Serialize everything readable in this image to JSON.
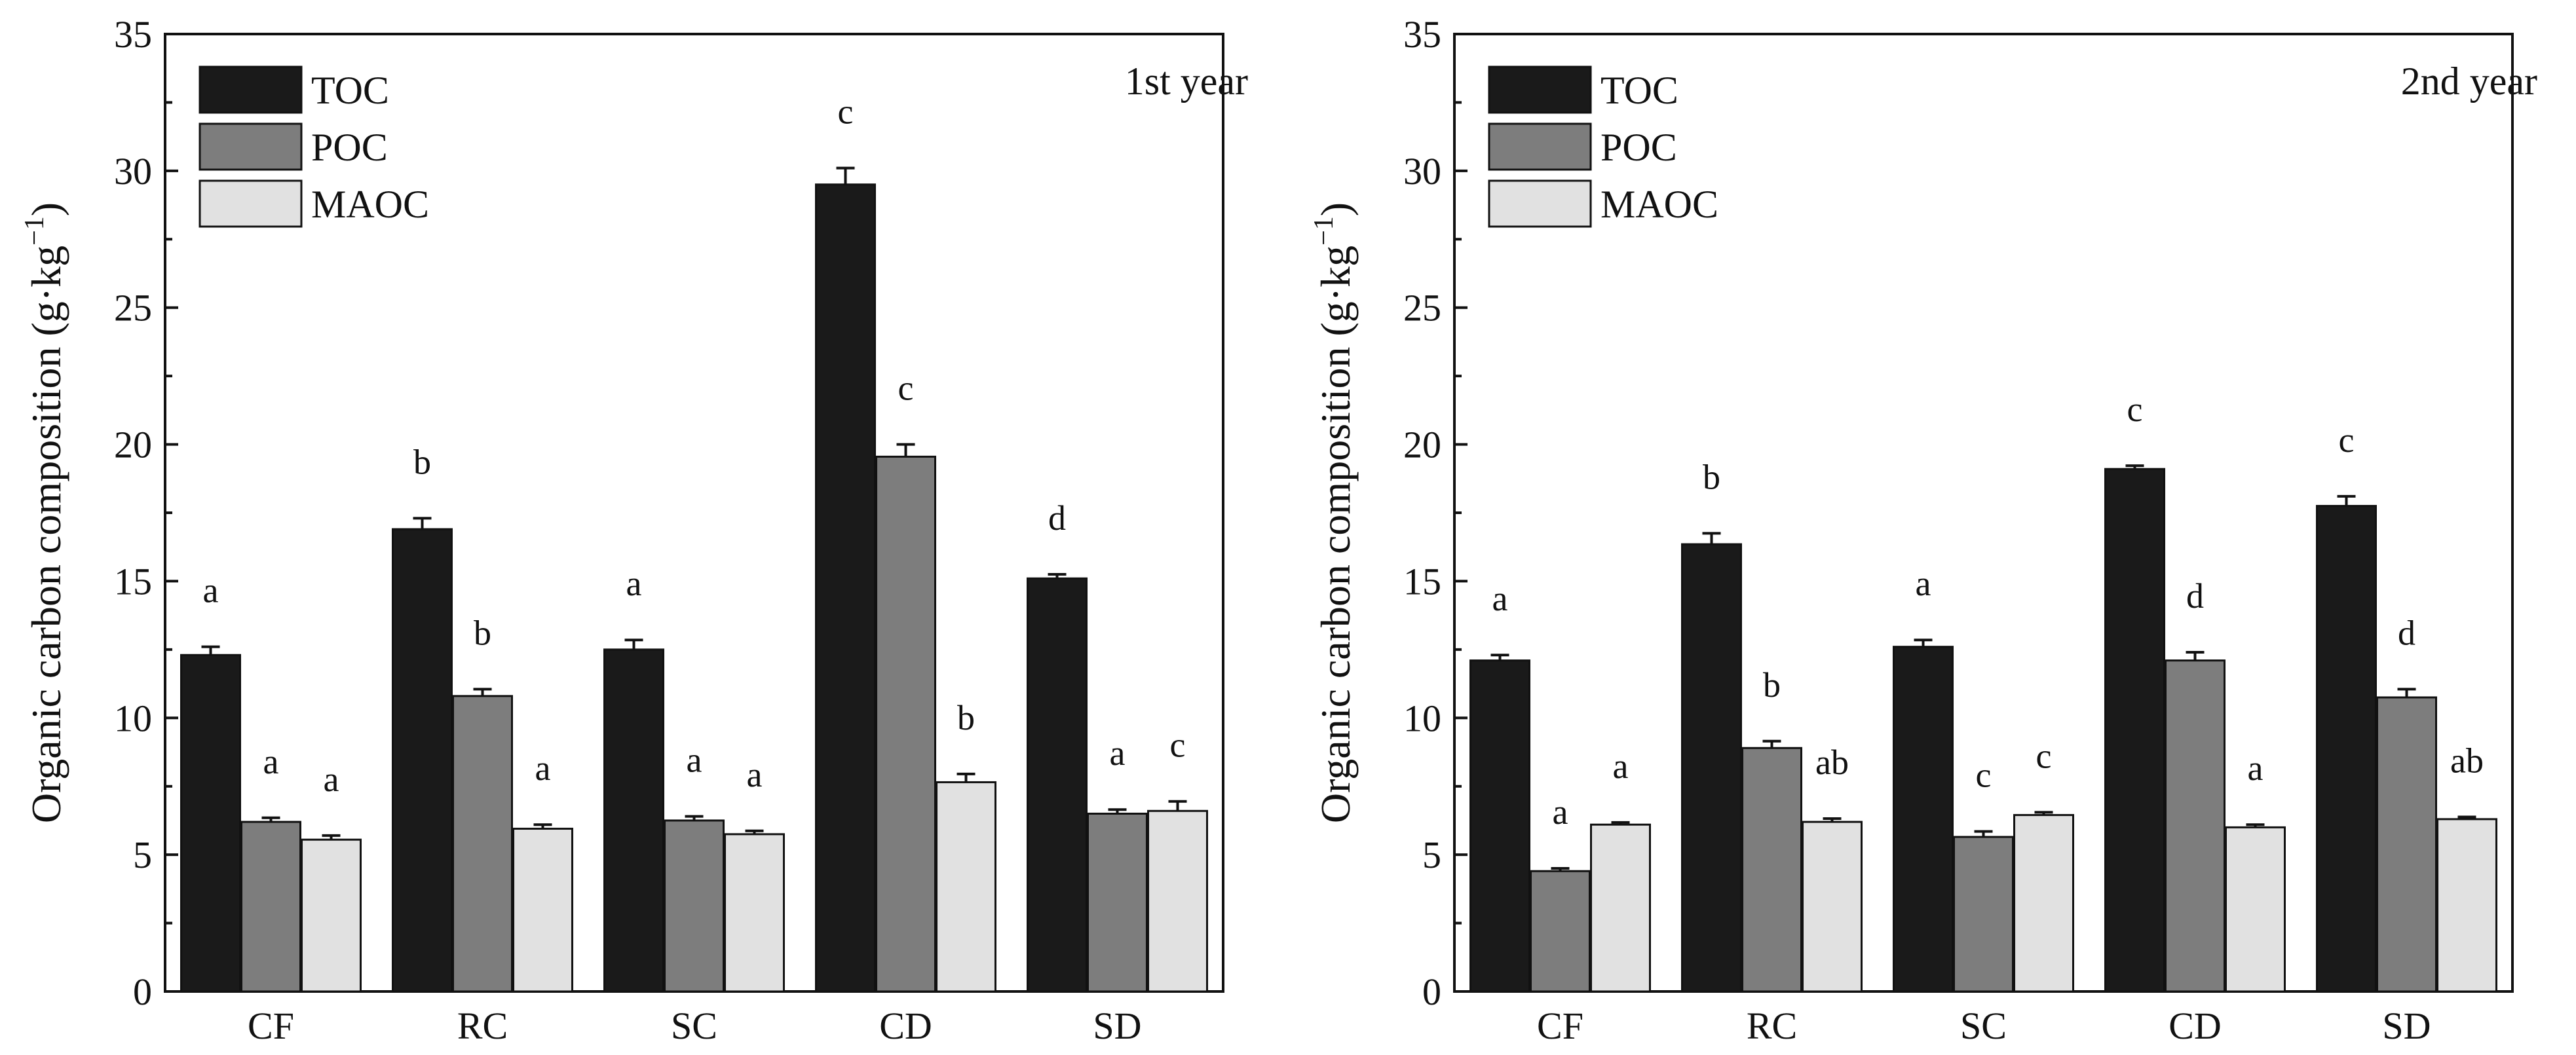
{
  "figure": {
    "ylabel_main": "Organic carbon composition (g·kg",
    "ylabel_sup": "−1",
    "ylabel_close": ")"
  },
  "chart_data": [
    {
      "type": "bar",
      "title": "1st year",
      "xlabel": "",
      "ylabel": "Organic carbon composition (g·kg−1)",
      "ylim": [
        0,
        35
      ],
      "yticks": [
        0,
        5,
        10,
        15,
        20,
        25,
        30,
        35
      ],
      "categories": [
        "CF",
        "RC",
        "SC",
        "CD",
        "SD"
      ],
      "legend_position": "top-left",
      "series": [
        {
          "name": "TOC",
          "color": "#1a1a1a",
          "values": [
            12.3,
            16.9,
            12.5,
            29.5,
            15.1
          ],
          "errors": [
            0.3,
            0.4,
            0.35,
            0.6,
            0.15
          ],
          "letters": [
            "a",
            "b",
            "a",
            "c",
            "d"
          ]
        },
        {
          "name": "POC",
          "color": "#7d7d7d",
          "values": [
            6.2,
            10.8,
            6.25,
            19.55,
            6.5
          ],
          "errors": [
            0.15,
            0.25,
            0.15,
            0.45,
            0.15
          ],
          "letters": [
            "a",
            "b",
            "a",
            "c",
            "a"
          ]
        },
        {
          "name": "MAOC",
          "color": "#e1e1e1",
          "values": [
            5.55,
            5.95,
            5.75,
            7.65,
            6.6
          ],
          "errors": [
            0.15,
            0.15,
            0.12,
            0.3,
            0.35
          ],
          "letters": [
            "a",
            "a",
            "a",
            "b",
            "c"
          ]
        }
      ]
    },
    {
      "type": "bar",
      "title": "2nd year",
      "xlabel": "",
      "ylabel": "Organic carbon composition (g·kg−1)",
      "ylim": [
        0,
        35
      ],
      "yticks": [
        0,
        5,
        10,
        15,
        20,
        25,
        30,
        35
      ],
      "categories": [
        "CF",
        "RC",
        "SC",
        "CD",
        "SD"
      ],
      "legend_position": "top-left",
      "series": [
        {
          "name": "TOC",
          "color": "#1a1a1a",
          "values": [
            12.1,
            16.35,
            12.6,
            19.1,
            17.75
          ],
          "errors": [
            0.2,
            0.4,
            0.25,
            0.12,
            0.35
          ],
          "letters": [
            "a",
            "b",
            "a",
            "c",
            "c"
          ]
        },
        {
          "name": "POC",
          "color": "#7d7d7d",
          "values": [
            4.4,
            8.9,
            5.65,
            12.1,
            10.75
          ],
          "errors": [
            0.1,
            0.25,
            0.2,
            0.3,
            0.3
          ],
          "letters": [
            "a",
            "b",
            "c",
            "d",
            "d"
          ]
        },
        {
          "name": "MAOC",
          "color": "#e1e1e1",
          "values": [
            6.1,
            6.2,
            6.45,
            6.0,
            6.3
          ],
          "errors": [
            0.08,
            0.12,
            0.1,
            0.1,
            0.08
          ],
          "letters": [
            "a",
            "ab",
            "c",
            "a",
            "ab"
          ]
        }
      ]
    }
  ]
}
